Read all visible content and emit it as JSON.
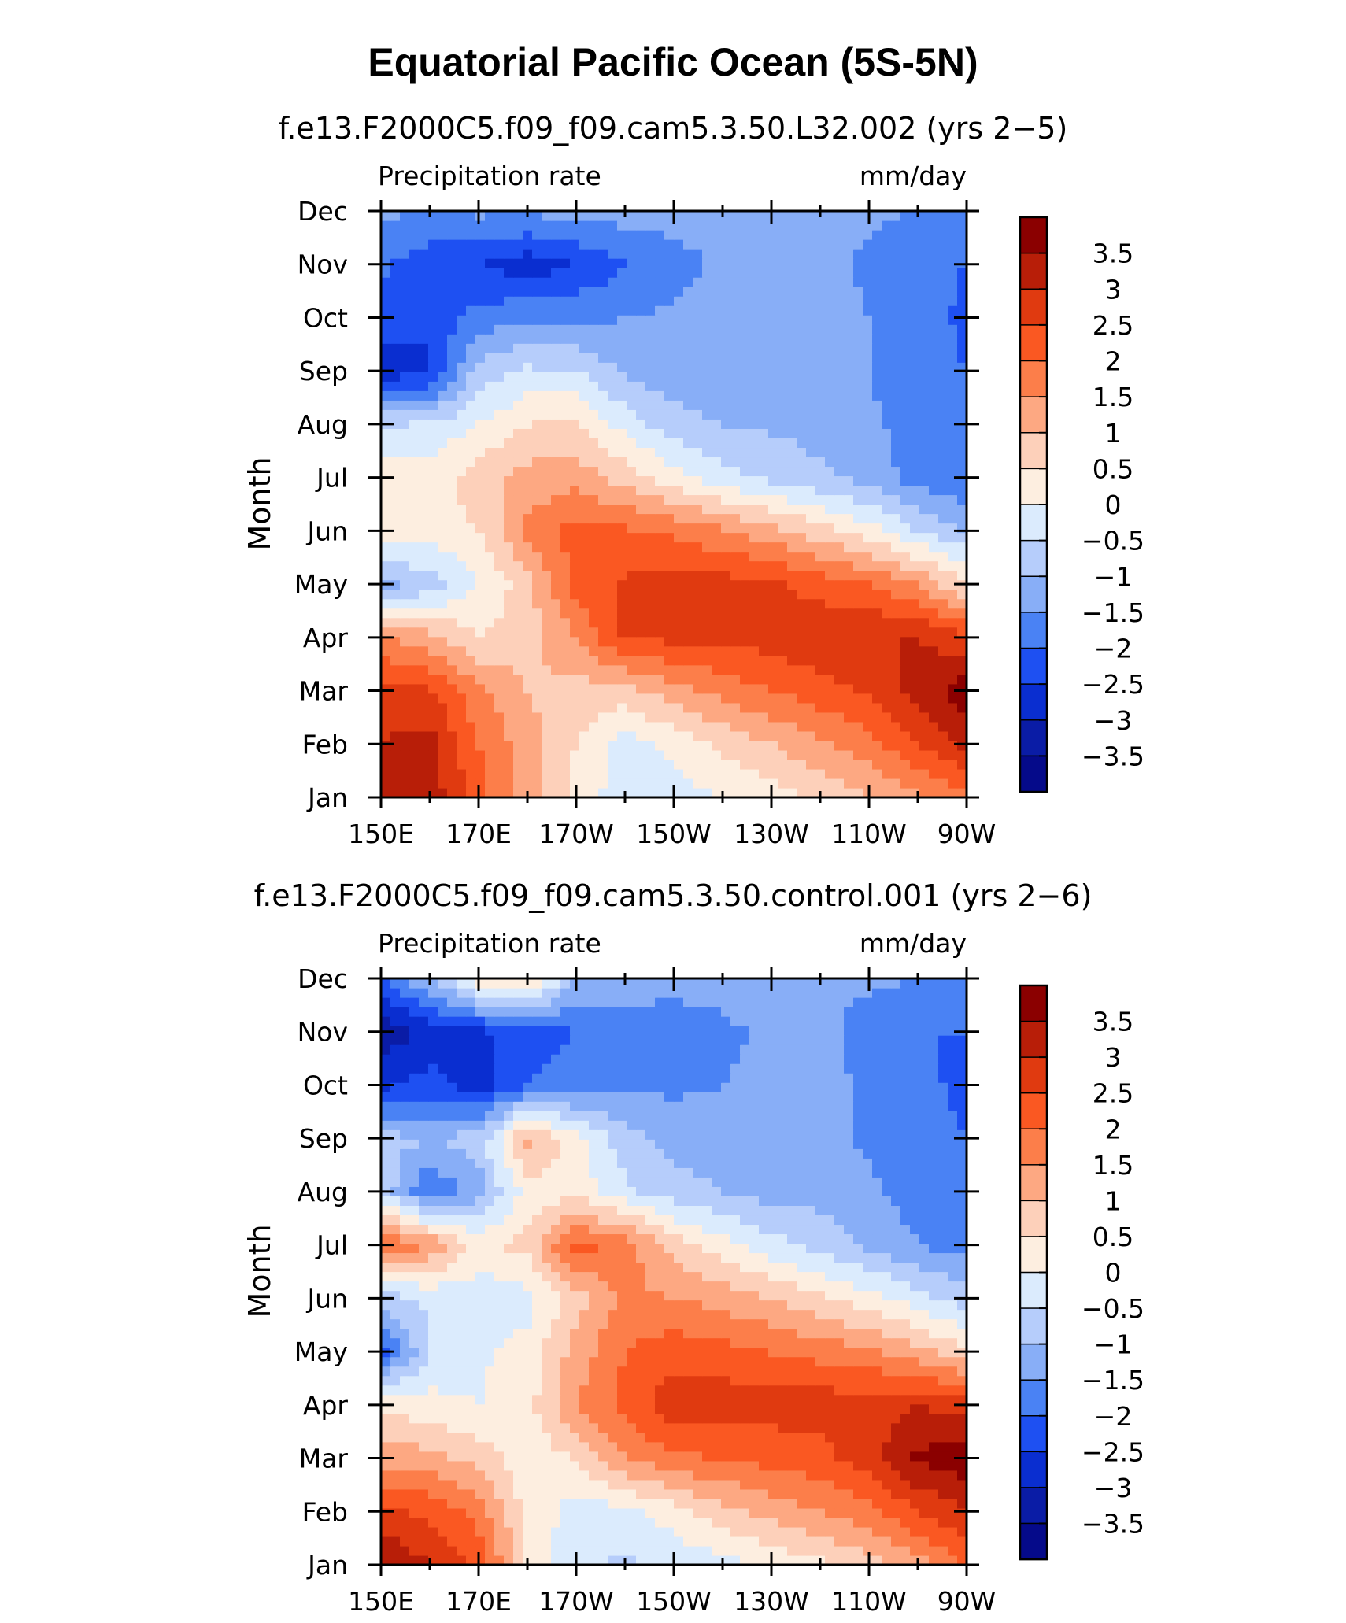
{
  "figure_title": "Equatorial Pacific Ocean (5S-5N)",
  "chart_data": [
    {
      "type": "heatmap",
      "title": "f.e13.F2000C5.f09_f09.cam5.3.50.L32.002 (yrs 2−5)",
      "left_label": "Precipitation rate",
      "right_label": "mm/day",
      "ylabel": "Month",
      "xlabel": "",
      "x_ticks": [
        "150E",
        "170E",
        "170W",
        "150W",
        "130W",
        "110W",
        "90W"
      ],
      "y_ticks": [
        "Jan",
        "Feb",
        "Mar",
        "Apr",
        "May",
        "Jun",
        "Jul",
        "Aug",
        "Sep",
        "Oct",
        "Nov",
        "Dec"
      ],
      "xlim": [
        "150E",
        "90W"
      ],
      "colorbar_levels": [
        "3.5",
        "3",
        "2.5",
        "2",
        "1.5",
        "1",
        "0.5",
        "0",
        "−0.5",
        "−1",
        "−1.5",
        "−2",
        "−2.5",
        "−3",
        "−3.5"
      ],
      "colorbar_colors": [
        "#8b0000",
        "#b81e08",
        "#e03a10",
        "#fa5822",
        "#fc7e4a",
        "#fda882",
        "#fdd0ba",
        "#fdeee0",
        "#dbebfd",
        "#b6cdfb",
        "#88aef7",
        "#4a82f4",
        "#1e50f2",
        "#0a2ed0",
        "#0a1ca6",
        "#050a8a"
      ],
      "rows_month": [
        "Jan",
        "Feb",
        "Mar",
        "Apr",
        "May",
        "Jun",
        "Jul",
        "Aug",
        "Sep",
        "Oct",
        "Nov",
        "Dec"
      ],
      "cols_lon": [
        "150E",
        "160E",
        "170E",
        "180",
        "170W",
        "160W",
        "150W",
        "140W",
        "130W",
        "120W",
        "110W",
        "100W",
        "90W"
      ],
      "values": [
        [
          3.2,
          3.3,
          2.2,
          1.3,
          0.3,
          -0.3,
          -0.2,
          0.0,
          0.3,
          0.6,
          1.0,
          1.4,
          1.8
        ],
        [
          3.0,
          3.2,
          2.0,
          1.2,
          0.5,
          -0.2,
          0.1,
          0.6,
          1.0,
          1.4,
          1.8,
          2.5,
          3.1
        ],
        [
          2.8,
          2.6,
          1.6,
          1.0,
          0.8,
          0.8,
          1.3,
          1.7,
          2.0,
          2.3,
          2.6,
          3.2,
          3.8
        ],
        [
          1.5,
          1.2,
          0.5,
          0.8,
          1.5,
          2.6,
          2.6,
          2.6,
          2.7,
          2.9,
          3.0,
          3.0,
          2.6
        ],
        [
          -1.2,
          -0.8,
          0.0,
          0.8,
          2.2,
          2.6,
          2.7,
          2.7,
          2.6,
          2.3,
          2.0,
          1.5,
          0.5
        ],
        [
          0.5,
          0.3,
          0.5,
          1.6,
          2.2,
          2.1,
          1.9,
          1.6,
          1.2,
          0.7,
          0.2,
          -0.5,
          -1.0
        ],
        [
          0.3,
          0.2,
          0.8,
          1.2,
          1.3,
          0.8,
          0.2,
          -0.3,
          -0.6,
          -0.9,
          -1.2,
          -1.7,
          -2.0
        ],
        [
          -0.6,
          -0.4,
          0.0,
          0.5,
          0.6,
          -0.2,
          -0.8,
          -1.0,
          -1.1,
          -1.2,
          -1.4,
          -1.7,
          -2.0
        ],
        [
          -2.8,
          -2.6,
          -0.8,
          -0.4,
          -0.5,
          -1.1,
          -1.3,
          -1.3,
          -1.3,
          -1.3,
          -1.5,
          -1.8,
          -2.0
        ],
        [
          -2.2,
          -2.4,
          -1.8,
          -1.6,
          -1.6,
          -1.5,
          -1.4,
          -1.3,
          -1.3,
          -1.3,
          -1.5,
          -1.8,
          -2.1
        ],
        [
          -1.9,
          -2.3,
          -2.5,
          -2.8,
          -2.5,
          -2.0,
          -1.7,
          -1.4,
          -1.3,
          -1.3,
          -1.6,
          -1.9,
          -2.0
        ],
        [
          -1.4,
          -1.5,
          -1.4,
          -1.4,
          -1.3,
          -1.3,
          -1.3,
          -1.3,
          -1.3,
          -1.3,
          -1.4,
          -1.5,
          -1.6
        ]
      ]
    },
    {
      "type": "heatmap",
      "title": "f.e13.F2000C5.f09_f09.cam5.3.50.control.001 (yrs 2−6)",
      "left_label": "Precipitation rate",
      "right_label": "mm/day",
      "ylabel": "Month",
      "xlabel": "",
      "x_ticks": [
        "150E",
        "170E",
        "170W",
        "150W",
        "130W",
        "110W",
        "90W"
      ],
      "y_ticks": [
        "Jan",
        "Feb",
        "Mar",
        "Apr",
        "May",
        "Jun",
        "Jul",
        "Aug",
        "Sep",
        "Oct",
        "Nov",
        "Dec"
      ],
      "xlim": [
        "150E",
        "90W"
      ],
      "colorbar_levels": [
        "3.5",
        "3",
        "2.5",
        "2",
        "1.5",
        "1",
        "0.5",
        "0",
        "−0.5",
        "−1",
        "−1.5",
        "−2",
        "−2.5",
        "−3",
        "−3.5"
      ],
      "colorbar_colors": [
        "#8b0000",
        "#b81e08",
        "#e03a10",
        "#fa5822",
        "#fc7e4a",
        "#fda882",
        "#fdd0ba",
        "#fdeee0",
        "#dbebfd",
        "#b6cdfb",
        "#88aef7",
        "#4a82f4",
        "#1e50f2",
        "#0a2ed0",
        "#0a1ca6",
        "#050a8a"
      ],
      "rows_month": [
        "Jan",
        "Feb",
        "Mar",
        "Apr",
        "May",
        "Jun",
        "Jul",
        "Aug",
        "Sep",
        "Oct",
        "Nov",
        "Dec"
      ],
      "cols_lon": [
        "150E",
        "160E",
        "170E",
        "180",
        "170W",
        "160W",
        "150W",
        "140W",
        "130W",
        "120W",
        "110W",
        "100W",
        "90W"
      ],
      "values": [
        [
          3.6,
          3.0,
          2.3,
          0.5,
          -0.4,
          -0.6,
          -0.4,
          -0.2,
          0.1,
          0.4,
          0.8,
          1.3,
          2.0
        ],
        [
          2.6,
          2.4,
          1.8,
          0.3,
          -0.2,
          -0.2,
          0.3,
          0.8,
          1.2,
          1.5,
          1.8,
          2.5,
          3.0
        ],
        [
          1.3,
          1.2,
          0.8,
          0.2,
          0.5,
          1.5,
          1.9,
          2.0,
          2.2,
          2.3,
          2.8,
          3.6,
          3.8
        ],
        [
          0.3,
          0.2,
          0.0,
          0.3,
          1.5,
          2.2,
          2.8,
          2.8,
          2.7,
          2.8,
          2.8,
          3.0,
          2.8
        ],
        [
          -2.2,
          -0.5,
          -0.1,
          0.2,
          1.2,
          2.0,
          2.3,
          2.2,
          2.0,
          1.8,
          1.6,
          1.2,
          0.6
        ],
        [
          -0.8,
          -0.4,
          -0.3,
          -0.2,
          0.8,
          1.6,
          1.5,
          1.3,
          1.0,
          0.6,
          0.2,
          -0.3,
          -0.8
        ],
        [
          2.2,
          1.5,
          0.3,
          0.7,
          2.2,
          1.8,
          0.8,
          0.2,
          -0.3,
          -0.7,
          -1.1,
          -1.5,
          -1.7
        ],
        [
          -0.6,
          -2.0,
          -1.2,
          0.2,
          0.3,
          -0.4,
          -0.8,
          -1.0,
          -1.2,
          -1.2,
          -1.4,
          -1.7,
          -2.0
        ],
        [
          -0.8,
          -1.0,
          -0.8,
          1.2,
          0.2,
          -0.8,
          -1.2,
          -1.3,
          -1.3,
          -1.3,
          -1.6,
          -1.8,
          -2.0
        ],
        [
          -2.6,
          -2.3,
          -2.8,
          -2.0,
          -1.8,
          -1.6,
          -1.6,
          -1.5,
          -1.4,
          -1.3,
          -1.6,
          -1.9,
          -2.1
        ],
        [
          -3.4,
          -2.8,
          -2.6,
          -2.2,
          -2.0,
          -1.8,
          -1.8,
          -1.6,
          -1.4,
          -1.3,
          -1.8,
          -2.0,
          -2.0
        ],
        [
          -2.0,
          -1.0,
          0.3,
          0.6,
          -1.0,
          -1.2,
          -1.3,
          -1.3,
          -1.3,
          -1.3,
          -1.4,
          -1.5,
          -1.6
        ]
      ]
    }
  ]
}
